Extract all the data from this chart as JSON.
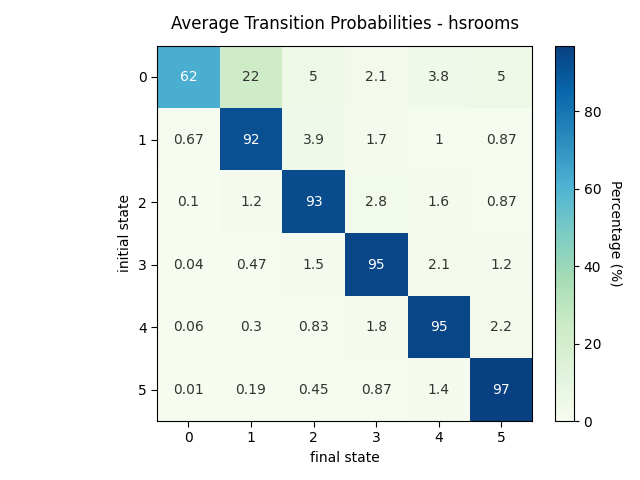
{
  "title": "Average Transition Probabilities - hsrooms",
  "xlabel": "final state",
  "ylabel": "initial state",
  "colorbar_label": "Percentage (%)",
  "row_labels": [
    "0",
    "1",
    "2",
    "3",
    "4",
    "5"
  ],
  "col_labels": [
    "0",
    "1",
    "2",
    "3",
    "4",
    "5"
  ],
  "matrix": [
    [
      62,
      22,
      5,
      2.1,
      3.8,
      5
    ],
    [
      0.67,
      92,
      3.9,
      1.7,
      1,
      0.87
    ],
    [
      0.1,
      1.2,
      93,
      2.8,
      1.6,
      0.87
    ],
    [
      0.04,
      0.47,
      1.5,
      95,
      2.1,
      1.2
    ],
    [
      0.06,
      0.3,
      0.83,
      1.8,
      95,
      2.2
    ],
    [
      0.01,
      0.19,
      0.45,
      0.87,
      1.4,
      97
    ]
  ],
  "vmin": 0,
  "vmax": 97,
  "cmap": "GnBu",
  "text_threshold": 50,
  "white_text_color": "white",
  "dark_text_color": "#333333",
  "colorbar_ticks": [
    0,
    20,
    40,
    60,
    80
  ],
  "figsize": [
    6.4,
    4.8
  ],
  "dpi": 100
}
